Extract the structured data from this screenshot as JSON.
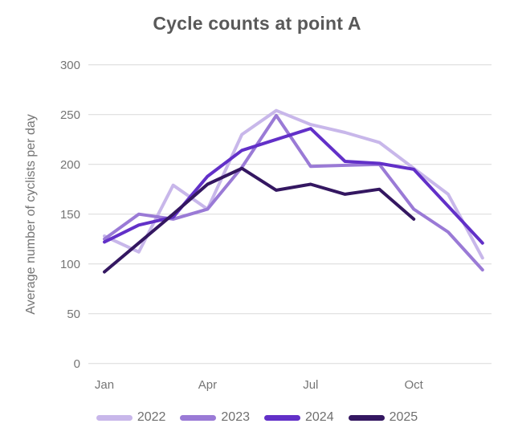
{
  "title": "Cycle counts at point A",
  "chart_data": {
    "type": "line",
    "title": "Cycle counts at point A",
    "xlabel": "",
    "ylabel": "Average number of cyclists per day",
    "categories": [
      "Jan",
      "Feb",
      "Mar",
      "Apr",
      "May",
      "Jun",
      "Jul",
      "Aug",
      "Sep",
      "Oct",
      "Nov",
      "Dec"
    ],
    "x_axis_shown_ticks": [
      "Jan",
      "Apr",
      "Jul",
      "Oct"
    ],
    "ylim": [
      0,
      300
    ],
    "ytick_step": 50,
    "ytick_labels": [
      "0",
      "50",
      "100",
      "150",
      "200",
      "250",
      "300"
    ],
    "grid": true,
    "legend_position": "bottom",
    "background_color": "#ffffff",
    "gridline_color": "#d9d9d9",
    "title_color": "#595959",
    "axis_text_color": "#757575",
    "series": [
      {
        "name": "2022",
        "color": "#c8b7ea",
        "values": [
          128,
          112,
          179,
          155,
          230,
          254,
          240,
          232,
          222,
          196,
          170,
          106
        ]
      },
      {
        "name": "2023",
        "color": "#9a7ad6",
        "values": [
          125,
          150,
          145,
          155,
          197,
          249,
          198,
          199,
          200,
          155,
          132,
          94
        ]
      },
      {
        "name": "2024",
        "color": "#6230c8",
        "values": [
          122,
          139,
          147,
          188,
          214,
          225,
          236,
          203,
          201,
          195,
          158,
          121
        ]
      },
      {
        "name": "2025",
        "color": "#341761",
        "values": [
          92,
          121,
          150,
          180,
          196,
          174,
          180,
          170,
          175,
          145,
          null,
          null
        ]
      }
    ]
  }
}
